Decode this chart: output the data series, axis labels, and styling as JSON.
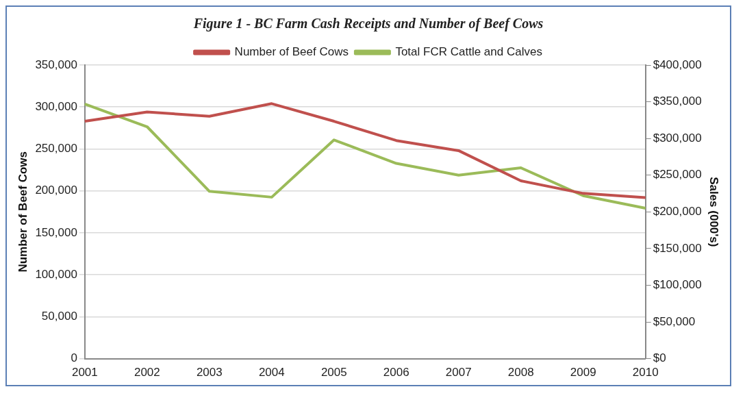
{
  "chart_data": {
    "type": "line",
    "title": "Figure 1 - BC Farm Cash Receipts and Number of Beef Cows",
    "categories": [
      "2001",
      "2002",
      "2003",
      "2004",
      "2005",
      "2006",
      "2007",
      "2008",
      "2009",
      "2010"
    ],
    "series": [
      {
        "name": "Number of Beef Cows",
        "color": "#c0504d",
        "values": [
          283000,
          294000,
          289000,
          304000,
          283000,
          260000,
          248000,
          212000,
          197000,
          192000
        ]
      },
      {
        "name": "Total FCR Cattle and Calves",
        "color": "#9bbb59",
        "axis": "y2",
        "values": [
          347000,
          316000,
          228000,
          220000,
          298000,
          266000,
          250000,
          260000,
          222000,
          205000
        ]
      }
    ],
    "ylabel": "Number of Beef Cows",
    "y2label": "Sales (000's)",
    "ylim": [
      0,
      350000
    ],
    "yticks": [
      0,
      {
        "value": 50000,
        "label": "50,000"
      },
      {
        "value": 100000,
        "label": "100,000"
      },
      {
        "value": 150000,
        "label": "150,000"
      },
      {
        "value": 200000,
        "label": "200,000"
      },
      {
        "value": 250000,
        "label": "250,000"
      },
      {
        "value": 300000,
        "label": "300,000"
      },
      {
        "value": 350000,
        "label": "350,000"
      }
    ],
    "y2lim": [
      0,
      400000
    ],
    "y2ticks": [
      {
        "value": 0,
        "label": "$0"
      },
      {
        "value": 50000,
        "label": "$50,000"
      },
      {
        "value": 100000,
        "label": "$100,000"
      },
      {
        "value": 150000,
        "label": "$150,000"
      },
      {
        "value": 200000,
        "label": "$200,000"
      },
      {
        "value": 250000,
        "label": "$250,000"
      },
      {
        "value": 300000,
        "label": "$300,000"
      },
      {
        "value": 350000,
        "label": "$350,000"
      },
      {
        "value": 400000,
        "label": "$400,000"
      }
    ],
    "grid": "y",
    "legend": "top",
    "marker": "none",
    "line_style": "solid"
  }
}
